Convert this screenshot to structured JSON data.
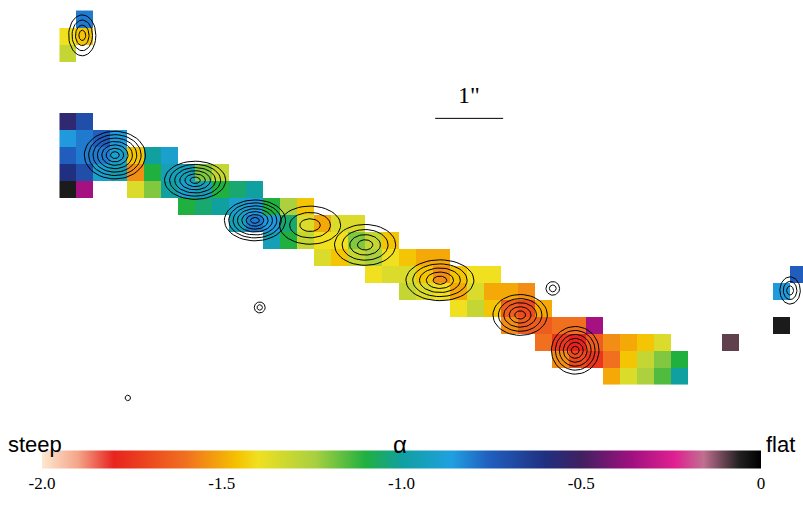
{
  "chart_data": {
    "type": "heatmap",
    "xlim": [
      0,
      11.81
    ],
    "ylim": [
      0,
      6.03
    ],
    "tick_labels": false,
    "cell_size": 0.25,
    "cells": [
      [
        1.0,
        3.25,
        -0.05
      ],
      [
        1.0,
        3.5,
        -0.6
      ],
      [
        1.0,
        3.75,
        -0.75
      ],
      [
        1.0,
        4.0,
        -0.85
      ],
      [
        1.0,
        4.25,
        -0.55
      ],
      [
        1.25,
        3.25,
        -0.35
      ],
      [
        1.25,
        3.5,
        -0.7
      ],
      [
        1.25,
        3.75,
        -0.8
      ],
      [
        1.25,
        4.0,
        -0.8
      ],
      [
        1.25,
        4.25,
        -0.7
      ],
      [
        1.5,
        3.5,
        -0.9
      ],
      [
        1.5,
        3.75,
        -0.8
      ],
      [
        1.5,
        4.0,
        -0.75
      ],
      [
        1.75,
        3.5,
        -0.95
      ],
      [
        1.75,
        3.75,
        -0.9
      ],
      [
        1.75,
        4.0,
        -0.85
      ],
      [
        2.0,
        3.25,
        -1.35
      ],
      [
        2.0,
        3.5,
        -1.55
      ],
      [
        2.0,
        3.75,
        -1.45
      ],
      [
        2.25,
        3.25,
        -1.2
      ],
      [
        2.25,
        3.5,
        -1.1
      ],
      [
        2.25,
        3.75,
        -1.0
      ],
      [
        2.5,
        3.25,
        -1.0
      ],
      [
        2.5,
        3.5,
        -0.95
      ],
      [
        2.5,
        3.75,
        -0.9
      ],
      [
        2.75,
        3.0,
        -1.1
      ],
      [
        2.75,
        3.25,
        -0.9
      ],
      [
        2.75,
        3.5,
        -0.95
      ],
      [
        3.0,
        3.0,
        -1.05
      ],
      [
        3.0,
        3.25,
        -0.95
      ],
      [
        3.0,
        3.5,
        -1.2
      ],
      [
        3.25,
        3.0,
        -1.0
      ],
      [
        3.25,
        3.25,
        -1.1
      ],
      [
        3.25,
        3.5,
        -1.3
      ],
      [
        3.5,
        2.75,
        -0.95
      ],
      [
        3.5,
        3.0,
        -0.9
      ],
      [
        3.5,
        3.25,
        -1.05
      ],
      [
        3.75,
        2.75,
        -0.8
      ],
      [
        3.75,
        3.0,
        -0.85
      ],
      [
        3.75,
        3.25,
        -1.0
      ],
      [
        4.0,
        2.5,
        -0.95
      ],
      [
        4.0,
        2.75,
        -0.85
      ],
      [
        4.0,
        3.0,
        -1.1
      ],
      [
        4.25,
        2.5,
        -1.1
      ],
      [
        4.25,
        2.75,
        -1.05
      ],
      [
        4.25,
        3.0,
        -1.25
      ],
      [
        4.5,
        2.5,
        -1.3
      ],
      [
        4.5,
        2.75,
        -1.35
      ],
      [
        4.5,
        3.0,
        -1.45
      ],
      [
        4.75,
        2.25,
        -1.35
      ],
      [
        4.75,
        2.5,
        -1.4
      ],
      [
        4.75,
        2.75,
        -1.5
      ],
      [
        5.0,
        2.25,
        -1.45
      ],
      [
        5.0,
        2.5,
        -1.4
      ],
      [
        5.0,
        2.75,
        -1.35
      ],
      [
        5.25,
        2.25,
        -1.3
      ],
      [
        5.25,
        2.5,
        -1.2
      ],
      [
        5.25,
        2.75,
        -1.35
      ],
      [
        5.5,
        2.0,
        -1.4
      ],
      [
        5.5,
        2.25,
        -1.25
      ],
      [
        5.5,
        2.5,
        -1.3
      ],
      [
        5.75,
        2.0,
        -1.35
      ],
      [
        5.75,
        2.25,
        -1.4
      ],
      [
        5.75,
        2.5,
        -1.45
      ],
      [
        6.0,
        1.75,
        -1.3
      ],
      [
        6.0,
        2.0,
        -1.35
      ],
      [
        6.0,
        2.25,
        -1.45
      ],
      [
        6.25,
        1.75,
        -1.35
      ],
      [
        6.25,
        2.0,
        -1.45
      ],
      [
        6.25,
        2.25,
        -1.5
      ],
      [
        6.5,
        1.75,
        -1.4
      ],
      [
        6.5,
        2.0,
        -1.55
      ],
      [
        6.5,
        2.25,
        -1.5
      ],
      [
        6.75,
        1.5,
        -1.4
      ],
      [
        6.75,
        1.75,
        -1.5
      ],
      [
        6.75,
        2.0,
        -1.45
      ],
      [
        7.0,
        1.5,
        -1.3
      ],
      [
        7.0,
        1.75,
        -1.35
      ],
      [
        7.0,
        2.0,
        -1.4
      ],
      [
        7.25,
        1.5,
        -1.45
      ],
      [
        7.25,
        1.75,
        -1.5
      ],
      [
        7.25,
        2.0,
        -1.4
      ],
      [
        7.5,
        1.25,
        -1.55
      ],
      [
        7.5,
        1.5,
        -1.65
      ],
      [
        7.5,
        1.75,
        -1.5
      ],
      [
        7.75,
        1.25,
        -1.65
      ],
      [
        7.75,
        1.5,
        -1.7
      ],
      [
        7.75,
        1.75,
        -1.55
      ],
      [
        8.0,
        1.0,
        -1.6
      ],
      [
        8.0,
        1.25,
        -1.65
      ],
      [
        8.0,
        1.5,
        -1.5
      ],
      [
        8.25,
        0.75,
        -1.55
      ],
      [
        8.25,
        1.0,
        -1.75
      ],
      [
        8.25,
        1.25,
        -1.6
      ],
      [
        8.5,
        0.75,
        -1.7
      ],
      [
        8.5,
        1.0,
        -1.8
      ],
      [
        8.5,
        1.25,
        -1.6
      ],
      [
        8.75,
        0.75,
        -1.75
      ],
      [
        8.75,
        1.0,
        -1.65
      ],
      [
        8.75,
        1.25,
        -0.35
      ],
      [
        9.0,
        0.5,
        -1.5
      ],
      [
        9.0,
        0.75,
        -1.6
      ],
      [
        9.0,
        1.0,
        -1.55
      ],
      [
        9.25,
        0.5,
        -1.35
      ],
      [
        9.25,
        0.75,
        -1.45
      ],
      [
        9.25,
        1.0,
        -1.5
      ],
      [
        9.5,
        0.5,
        -1.25
      ],
      [
        9.5,
        0.75,
        -1.3
      ],
      [
        9.5,
        1.0,
        -1.45
      ],
      [
        9.75,
        0.5,
        -1.15
      ],
      [
        9.75,
        0.75,
        -1.2
      ],
      [
        9.75,
        1.0,
        -1.35
      ],
      [
        10.0,
        0.5,
        -1.0
      ],
      [
        10.0,
        0.75,
        -1.1
      ],
      [
        1.0,
        5.25,
        -1.3
      ],
      [
        1.0,
        5.5,
        -1.4
      ],
      [
        1.25,
        5.5,
        -1.45
      ],
      [
        1.25,
        5.75,
        -0.8
      ],
      [
        10.75,
        1.0,
        -0.1
      ],
      [
        11.5,
        1.25,
        -0.05
      ],
      [
        11.5,
        1.75,
        -0.85
      ],
      [
        11.75,
        2.0,
        -0.75
      ]
    ],
    "contours": [
      {
        "x": 1.69,
        "y": 3.75,
        "a": 0.45,
        "b": 0.35,
        "levels": 7
      },
      {
        "x": 2.87,
        "y": 3.38,
        "a": 0.45,
        "b": 0.28,
        "levels": 6
      },
      {
        "x": 3.75,
        "y": 2.79,
        "a": 0.45,
        "b": 0.3,
        "levels": 7
      },
      {
        "x": 4.56,
        "y": 2.72,
        "a": 0.45,
        "b": 0.28,
        "levels": 3
      },
      {
        "x": 5.37,
        "y": 2.43,
        "a": 0.45,
        "b": 0.3,
        "levels": 4
      },
      {
        "x": 6.47,
        "y": 1.91,
        "a": 0.5,
        "b": 0.3,
        "levels": 5
      },
      {
        "x": 7.65,
        "y": 1.4,
        "a": 0.4,
        "b": 0.3,
        "levels": 5
      },
      {
        "x": 8.46,
        "y": 0.88,
        "a": 0.35,
        "b": 0.35,
        "levels": 6
      },
      {
        "x": 1.21,
        "y": 5.51,
        "a": 0.2,
        "b": 0.3,
        "levels": 4
      },
      {
        "x": 11.62,
        "y": 1.76,
        "a": 0.15,
        "b": 0.2,
        "levels": 3
      },
      {
        "x": 3.82,
        "y": 1.51,
        "a": 0.08,
        "b": 0.08,
        "levels": 2
      },
      {
        "x": 8.13,
        "y": 1.79,
        "a": 0.1,
        "b": 0.1,
        "levels": 2
      },
      {
        "x": 1.88,
        "y": 0.18,
        "a": 0.04,
        "b": 0.04,
        "levels": 1
      }
    ],
    "scale_bar": {
      "length": 1,
      "label": "1\""
    },
    "colorbar": {
      "range": [
        -2.0,
        0
      ],
      "ticks": [
        {
          "value": -2.0,
          "label": "-2.0"
        },
        {
          "value": -1.5,
          "label": "-1.5"
        },
        {
          "value": -1.0,
          "label": "-1.0"
        },
        {
          "value": -0.5,
          "label": "-0.5"
        },
        0
      ],
      "title": "α",
      "low_label": "steep",
      "high_label": "flat"
    }
  }
}
